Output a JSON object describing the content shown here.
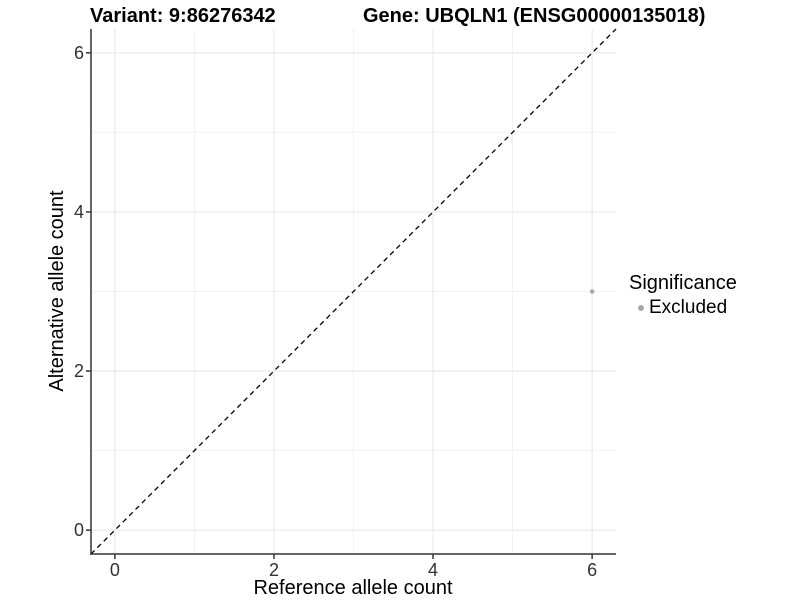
{
  "titles": {
    "variant": "Variant: 9:86276342",
    "gene": "Gene: UBQLN1 (ENSG00000135018)"
  },
  "chart_data": {
    "type": "scatter",
    "title_left": "Variant: 9:86276342",
    "title_right": "Gene: UBQLN1 (ENSG00000135018)",
    "xlabel": "Reference allele count",
    "ylabel": "Alternative allele count",
    "xlim": [
      -0.3,
      6.3
    ],
    "ylim": [
      -0.3,
      6.3
    ],
    "x_major_ticks": [
      0,
      2,
      4,
      6
    ],
    "y_major_ticks": [
      0,
      2,
      4,
      6
    ],
    "x_tick_labels": [
      "0",
      "2",
      "4",
      "6"
    ],
    "y_tick_labels": [
      "0",
      "2",
      "4",
      "6"
    ],
    "x_minor_ticks": [
      1,
      3,
      5
    ],
    "y_minor_ticks": [
      1,
      3,
      5
    ],
    "grid": true,
    "reference_line": {
      "type": "abline",
      "slope": 1,
      "intercept": 0,
      "style": "dashed",
      "color": "#000000"
    },
    "series": [
      {
        "name": "Excluded",
        "points": [
          {
            "x": 6,
            "y": 3
          }
        ],
        "color": "#ababab"
      }
    ],
    "legend": {
      "position": "right",
      "title": "Significance",
      "entries": [
        {
          "label": "Excluded",
          "color": "#a8a8a8"
        }
      ]
    }
  },
  "colors": {
    "grid_major": "#e6e6e6",
    "grid_minor": "#f2f2f2",
    "axis_line": "#333333",
    "tick_mark": "#333333",
    "tick_text": "#333333",
    "point": "#ababab",
    "diagonal": "#000000"
  }
}
